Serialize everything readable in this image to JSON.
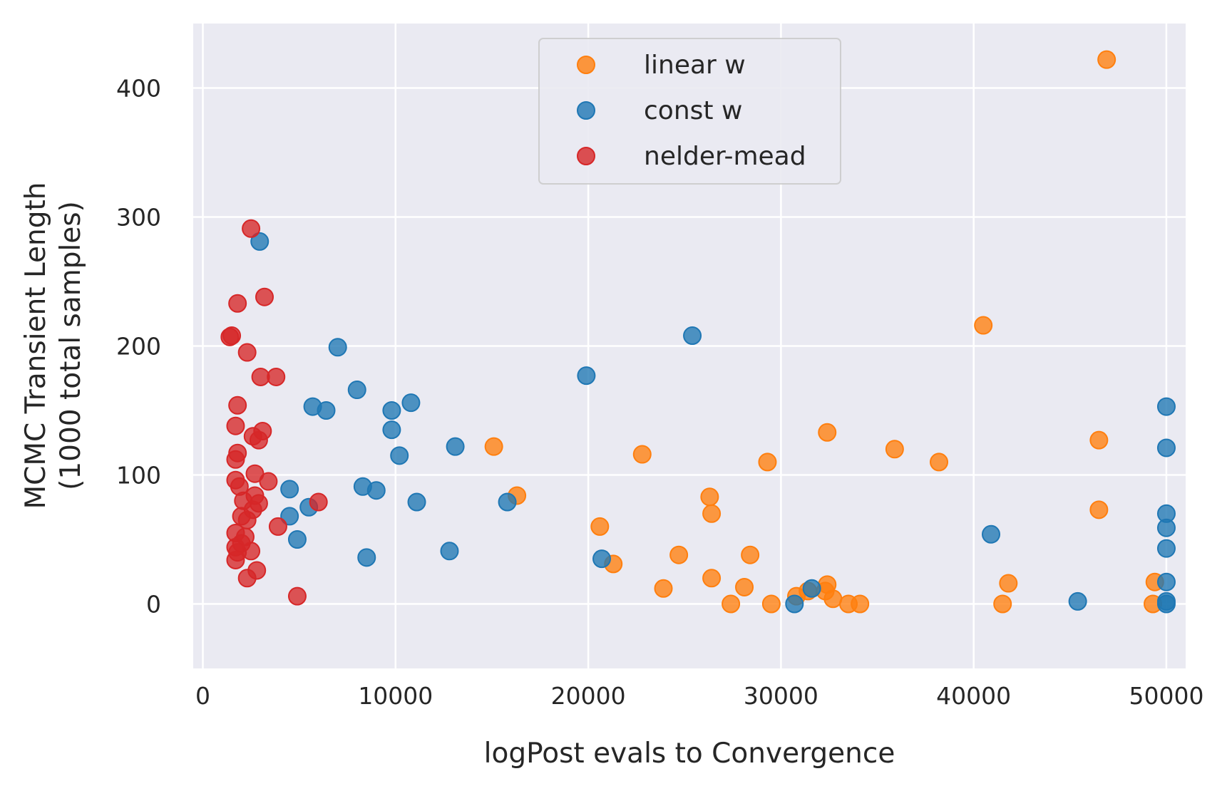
{
  "chart_data": {
    "type": "scatter",
    "xlabel": "logPost evals to Convergence",
    "ylabel": [
      "MCMC Transient Length",
      "(1000 total samples)"
    ],
    "xlim": [
      -500,
      51000
    ],
    "ylim": [
      -50,
      450
    ],
    "xticks": [
      0,
      10000,
      20000,
      30000,
      40000,
      50000
    ],
    "yticks": [
      0,
      100,
      200,
      300,
      400
    ],
    "grid": true,
    "legend_position": "top-center",
    "background": "#eaeaf2",
    "series": [
      {
        "name": "linear w",
        "color": "#ff7f0e",
        "points": [
          [
            46900,
            422
          ],
          [
            40500,
            216
          ],
          [
            15100,
            122
          ],
          [
            16300,
            84
          ],
          [
            22800,
            116
          ],
          [
            29300,
            110
          ],
          [
            32400,
            133
          ],
          [
            35900,
            120
          ],
          [
            38200,
            110
          ],
          [
            46500,
            127
          ],
          [
            46500,
            73
          ],
          [
            26300,
            83
          ],
          [
            26400,
            70
          ],
          [
            20600,
            60
          ],
          [
            21300,
            31
          ],
          [
            24700,
            38
          ],
          [
            28400,
            38
          ],
          [
            23900,
            12
          ],
          [
            26400,
            20
          ],
          [
            28100,
            13
          ],
          [
            27400,
            0
          ],
          [
            29500,
            0
          ],
          [
            30800,
            6
          ],
          [
            31400,
            10
          ],
          [
            32300,
            10
          ],
          [
            32400,
            15
          ],
          [
            32700,
            4
          ],
          [
            33500,
            0
          ],
          [
            34100,
            0
          ],
          [
            41800,
            16
          ],
          [
            41500,
            0
          ],
          [
            49400,
            17
          ],
          [
            49300,
            0
          ]
        ]
      },
      {
        "name": "const w",
        "color": "#1f77b4",
        "points": [
          [
            2950,
            281
          ],
          [
            25400,
            208
          ],
          [
            7000,
            199
          ],
          [
            19900,
            177
          ],
          [
            8000,
            166
          ],
          [
            5700,
            153
          ],
          [
            6400,
            150
          ],
          [
            9800,
            150
          ],
          [
            10800,
            156
          ],
          [
            9800,
            135
          ],
          [
            10200,
            115
          ],
          [
            13100,
            122
          ],
          [
            4500,
            89
          ],
          [
            8300,
            91
          ],
          [
            9000,
            88
          ],
          [
            5500,
            75
          ],
          [
            4500,
            68
          ],
          [
            11100,
            79
          ],
          [
            15800,
            79
          ],
          [
            4900,
            50
          ],
          [
            8500,
            36
          ],
          [
            12800,
            41
          ],
          [
            20700,
            35
          ],
          [
            40900,
            54
          ],
          [
            30700,
            0
          ],
          [
            31600,
            12
          ],
          [
            45400,
            2
          ],
          [
            50000,
            153
          ],
          [
            50000,
            121
          ],
          [
            50000,
            70
          ],
          [
            50000,
            59
          ],
          [
            50000,
            43
          ],
          [
            50000,
            17
          ],
          [
            50000,
            2
          ],
          [
            50000,
            0
          ]
        ]
      },
      {
        "name": "nelder-mead",
        "color": "#d62728",
        "points": [
          [
            2500,
            291
          ],
          [
            1800,
            233
          ],
          [
            3200,
            238
          ],
          [
            1400,
            207
          ],
          [
            1500,
            208
          ],
          [
            2300,
            195
          ],
          [
            3000,
            176
          ],
          [
            3800,
            176
          ],
          [
            1800,
            154
          ],
          [
            1700,
            138
          ],
          [
            3100,
            134
          ],
          [
            2600,
            130
          ],
          [
            2900,
            127
          ],
          [
            1800,
            117
          ],
          [
            1700,
            112
          ],
          [
            2700,
            101
          ],
          [
            3400,
            95
          ],
          [
            1700,
            96
          ],
          [
            1900,
            91
          ],
          [
            2700,
            84
          ],
          [
            2100,
            80
          ],
          [
            2900,
            78
          ],
          [
            6000,
            79
          ],
          [
            2600,
            73
          ],
          [
            2000,
            68
          ],
          [
            2300,
            65
          ],
          [
            3900,
            60
          ],
          [
            1700,
            55
          ],
          [
            2200,
            52
          ],
          [
            2000,
            47
          ],
          [
            1700,
            44
          ],
          [
            1800,
            40
          ],
          [
            2500,
            41
          ],
          [
            1700,
            34
          ],
          [
            2800,
            26
          ],
          [
            2300,
            20
          ],
          [
            4900,
            6
          ]
        ]
      }
    ]
  }
}
